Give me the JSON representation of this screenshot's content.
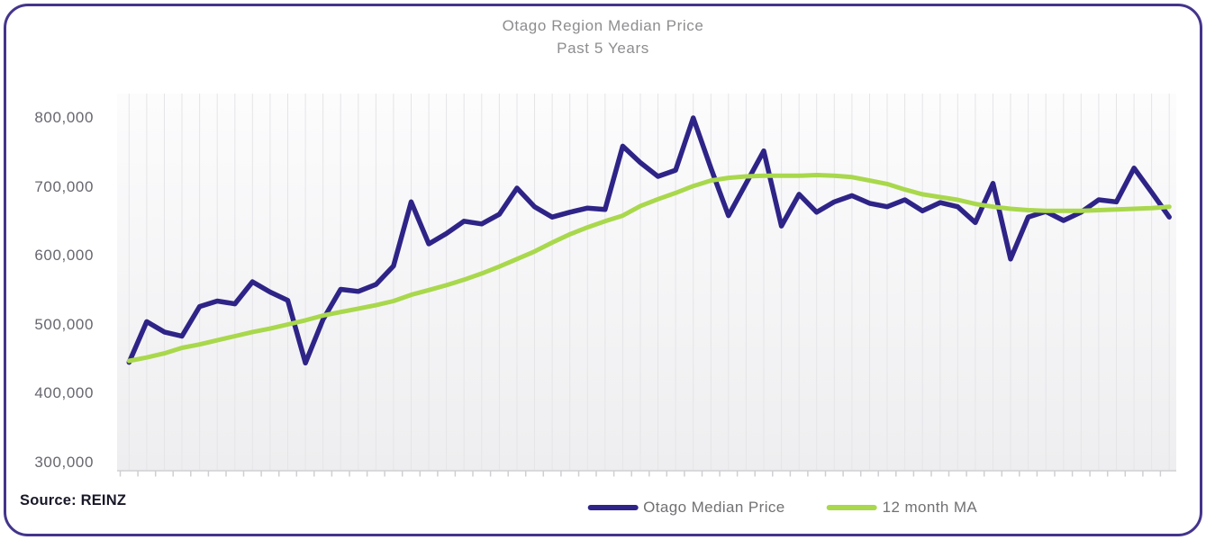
{
  "chart": {
    "title": "Otago Region Median Price",
    "subtitle": "Past 5 Years"
  },
  "footer": {
    "source_label": "Source: REINZ"
  },
  "legend": {
    "items": [
      {
        "label": "Otago Median Price",
        "color": "#2e2487"
      },
      {
        "label": "12 month MA",
        "color": "#a9d84c"
      }
    ]
  },
  "chart_data": {
    "type": "line",
    "title": "Otago Region Median Price",
    "subtitle": "Past 5 Years",
    "source": "REINZ",
    "grid": "vertical gridlines only, light gray plot background",
    "legend_position": "bottom center",
    "x_axis": {
      "label": "",
      "unit": "month",
      "count": 60,
      "note": "60 monthly observations over 5 years; x tick marks shown but no tick labels"
    },
    "y_axis": {
      "label": "",
      "ticks": [
        300000,
        400000,
        500000,
        600000,
        700000,
        800000
      ],
      "tick_labels": [
        "300,000",
        "400,000",
        "500,000",
        "600,000",
        "700,000",
        "800,000"
      ],
      "range": [
        300000,
        830000
      ]
    },
    "x": [
      1,
      2,
      3,
      4,
      5,
      6,
      7,
      8,
      9,
      10,
      11,
      12,
      13,
      14,
      15,
      16,
      17,
      18,
      19,
      20,
      21,
      22,
      23,
      24,
      25,
      26,
      27,
      28,
      29,
      30,
      31,
      32,
      33,
      34,
      35,
      36,
      37,
      38,
      39,
      40,
      41,
      42,
      43,
      44,
      45,
      46,
      47,
      48,
      49,
      50,
      51,
      52,
      53,
      54,
      55,
      56,
      57,
      58,
      59,
      60
    ],
    "series": [
      {
        "name": "Otago Median Price",
        "color": "#2e2487",
        "values": [
          445000,
          504000,
          489000,
          483000,
          526000,
          534000,
          530000,
          562000,
          547000,
          535000,
          444000,
          507000,
          551000,
          548000,
          558000,
          585000,
          678000,
          617000,
          632000,
          650000,
          646000,
          660000,
          698000,
          671000,
          656000,
          663000,
          669000,
          667000,
          759000,
          735000,
          715000,
          724000,
          800000,
          727000,
          658000,
          705000,
          752000,
          643000,
          689000,
          663000,
          678000,
          687000,
          676000,
          671000,
          681000,
          665000,
          677000,
          671000,
          648000,
          705000,
          595000,
          656000,
          664000,
          651000,
          663000,
          681000,
          678000,
          727000,
          692000,
          656000
        ]
      },
      {
        "name": "12 month MA",
        "color": "#a9d84c",
        "values": [
          447000,
          452000,
          458000,
          466000,
          471000,
          477000,
          483000,
          489000,
          494000,
          500000,
          506000,
          513000,
          518000,
          523000,
          528000,
          534000,
          543000,
          550000,
          557000,
          565000,
          574000,
          584000,
          595000,
          606000,
          619000,
          631000,
          641000,
          650000,
          658000,
          672000,
          682000,
          691000,
          701000,
          709000,
          713000,
          715000,
          716000,
          716000,
          716000,
          717000,
          716000,
          714000,
          709000,
          704000,
          696000,
          689000,
          685000,
          681000,
          675000,
          671000,
          668000,
          666000,
          665000,
          665000,
          665000,
          666000,
          667000,
          668000,
          669000,
          671000
        ]
      }
    ],
    "style": {
      "plot_bg_top": "#fcfcfd",
      "plot_bg_bottom": "#eeeef0",
      "gridline_color": "#e5e5e8",
      "axis_color": "#d9d9dc",
      "card_border_color": "#44348c"
    }
  }
}
